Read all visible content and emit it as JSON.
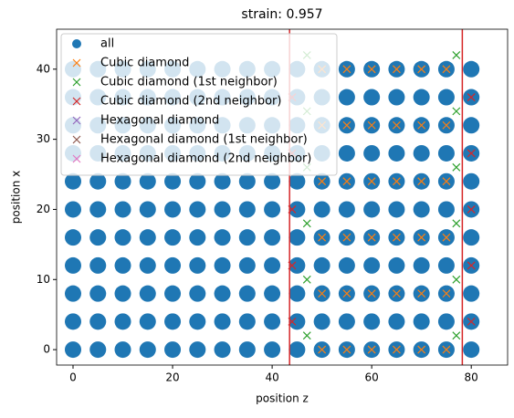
{
  "chart_data": {
    "type": "scatter",
    "title": "strain: 0.957",
    "xlabel": "position z",
    "ylabel": "position x",
    "xlim": [
      -3.3,
      87.3
    ],
    "ylim": [
      -2.2,
      45.7
    ],
    "xticks": [
      0,
      20,
      40,
      60,
      80
    ],
    "yticks": [
      0,
      10,
      20,
      30,
      40
    ],
    "vlines": [
      43.5,
      78.2
    ],
    "vline_color": "#d62728",
    "legend": "upper left",
    "series": [
      {
        "name": "all",
        "color": "#1f77b4",
        "marker": "o",
        "x": [
          0,
          5,
          10,
          15,
          20,
          25,
          30,
          35,
          40,
          45,
          50,
          55,
          60,
          65,
          70,
          75,
          80,
          0,
          5,
          10,
          15,
          20,
          25,
          30,
          35,
          40,
          45,
          50,
          55,
          60,
          65,
          70,
          75,
          80,
          0,
          5,
          10,
          15,
          20,
          25,
          30,
          35,
          40,
          45,
          50,
          55,
          60,
          65,
          70,
          75,
          80,
          0,
          5,
          10,
          15,
          20,
          25,
          30,
          35,
          40,
          45,
          50,
          55,
          60,
          65,
          70,
          75,
          80,
          0,
          5,
          10,
          15,
          20,
          25,
          30,
          35,
          40,
          45,
          50,
          55,
          60,
          65,
          70,
          75,
          80,
          0,
          5,
          10,
          15,
          20,
          25,
          30,
          35,
          40,
          45,
          50,
          55,
          60,
          65,
          70,
          75,
          80,
          0,
          5,
          10,
          15,
          20,
          25,
          30,
          35,
          40,
          45,
          50,
          55,
          60,
          65,
          70,
          75,
          80,
          0,
          5,
          10,
          15,
          20,
          25,
          30,
          35,
          40,
          45,
          50,
          55,
          60,
          65,
          70,
          75,
          80,
          0,
          5,
          10,
          15,
          20,
          25,
          30,
          35,
          40,
          45,
          50,
          55,
          60,
          65,
          70,
          75,
          80,
          0,
          5,
          10,
          15,
          20,
          25,
          30,
          35,
          40,
          45,
          50,
          55,
          60,
          65,
          70,
          75,
          80,
          0,
          5,
          10,
          15,
          20,
          25,
          30,
          35,
          40,
          45,
          50,
          55,
          60,
          65,
          70,
          75,
          80
        ],
        "y": [
          0,
          0,
          0,
          0,
          0,
          0,
          0,
          0,
          0,
          0,
          0,
          0,
          0,
          0,
          0,
          0,
          0,
          4,
          4,
          4,
          4,
          4,
          4,
          4,
          4,
          4,
          4,
          4,
          4,
          4,
          4,
          4,
          4,
          4,
          8,
          8,
          8,
          8,
          8,
          8,
          8,
          8,
          8,
          8,
          8,
          8,
          8,
          8,
          8,
          8,
          8,
          12,
          12,
          12,
          12,
          12,
          12,
          12,
          12,
          12,
          12,
          12,
          12,
          12,
          12,
          12,
          12,
          12,
          16,
          16,
          16,
          16,
          16,
          16,
          16,
          16,
          16,
          16,
          16,
          16,
          16,
          16,
          16,
          16,
          16,
          20,
          20,
          20,
          20,
          20,
          20,
          20,
          20,
          20,
          20,
          20,
          20,
          20,
          20,
          20,
          20,
          20,
          24,
          24,
          24,
          24,
          24,
          24,
          24,
          24,
          24,
          24,
          24,
          24,
          24,
          24,
          24,
          24,
          24,
          28,
          28,
          28,
          28,
          28,
          28,
          28,
          28,
          28,
          28,
          28,
          28,
          28,
          28,
          28,
          28,
          28,
          32,
          32,
          32,
          32,
          32,
          32,
          32,
          32,
          32,
          32,
          32,
          32,
          32,
          32,
          32,
          32,
          32,
          36,
          36,
          36,
          36,
          36,
          36,
          36,
          36,
          36,
          36,
          36,
          36,
          36,
          36,
          36,
          36,
          36,
          40,
          40,
          40,
          40,
          40,
          40,
          40,
          40,
          40,
          40,
          40,
          40,
          40,
          40,
          40,
          40,
          40
        ]
      },
      {
        "name": "Cubic diamond",
        "color": "#ff7f0e",
        "marker": "x",
        "x": [
          50,
          55,
          60,
          65,
          70,
          75,
          50,
          55,
          60,
          65,
          70,
          75,
          50,
          55,
          60,
          65,
          70,
          75,
          50,
          55,
          60,
          65,
          70,
          75,
          50,
          55,
          60,
          65,
          70,
          75,
          50,
          55,
          60,
          65,
          70,
          75
        ],
        "y": [
          0,
          0,
          0,
          0,
          0,
          0,
          8,
          8,
          8,
          8,
          8,
          8,
          16,
          16,
          16,
          16,
          16,
          16,
          24,
          24,
          24,
          24,
          24,
          24,
          32,
          32,
          32,
          32,
          32,
          32,
          40,
          40,
          40,
          40,
          40,
          40
        ]
      },
      {
        "name": "Cubic diamond (1st neighbor)",
        "color": "#2ca02c",
        "marker": "x",
        "x": [
          47,
          77,
          47,
          77,
          47,
          77,
          47,
          77,
          47,
          77,
          47,
          77
        ],
        "y": [
          2,
          2,
          10,
          10,
          18,
          18,
          26,
          26,
          34,
          34,
          42,
          42
        ]
      },
      {
        "name": "Cubic diamond (2nd neighbor)",
        "color": "#d62728",
        "marker": "x",
        "x": [
          44,
          80,
          44,
          80,
          44,
          80,
          44,
          80,
          44,
          80
        ],
        "y": [
          4,
          4,
          12,
          12,
          20,
          20,
          28,
          28,
          36,
          36
        ]
      },
      {
        "name": "Hexagonal diamond",
        "color": "#9467bd",
        "marker": "x",
        "x": [],
        "y": []
      },
      {
        "name": "Hexagonal diamond (1st neighbor)",
        "color": "#8c564b",
        "marker": "x",
        "x": [],
        "y": []
      },
      {
        "name": "Hexagonal diamond (2nd neighbor)",
        "color": "#e377c2",
        "marker": "x",
        "x": [],
        "y": []
      }
    ]
  }
}
